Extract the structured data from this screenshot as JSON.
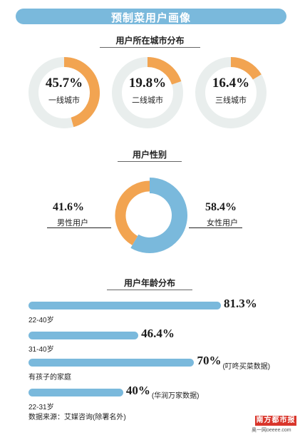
{
  "title": "预制菜用户画像",
  "city_section": {
    "title": "用户所在城市分布"
  },
  "gender_section": {
    "title": "用户性别"
  },
  "age_section": {
    "title": "用户年龄分布"
  },
  "source": "数据来源：艾媒咨询(除署名外)",
  "logo": {
    "name": "南方都市报",
    "sub": "奥一网oeeee.com"
  },
  "colors": {
    "blue": "#7ab9dc",
    "orange": "#f2a451",
    "track": "#e9eeed"
  },
  "chart_data": [
    {
      "type": "pie",
      "title": "用户所在城市分布",
      "slices": [
        {
          "label": "一线城市",
          "value": 45.7,
          "text": "45.7%"
        },
        {
          "label": "二线城市",
          "value": 19.8,
          "text": "19.8%"
        },
        {
          "label": "三线城市",
          "value": 16.4,
          "text": "16.4%"
        }
      ]
    },
    {
      "type": "pie",
      "title": "用户性别",
      "slices": [
        {
          "label": "男性用户",
          "value": 41.6,
          "text": "41.6%"
        },
        {
          "label": "女性用户",
          "value": 58.4,
          "text": "58.4%"
        }
      ]
    },
    {
      "type": "bar",
      "title": "用户年龄分布",
      "bars": [
        {
          "label": "22-40岁",
          "value": 81.3,
          "text": "81.3%",
          "note": ""
        },
        {
          "label": "31-40岁",
          "value": 46.4,
          "text": "46.4%",
          "note": ""
        },
        {
          "label": "有孩子的家庭",
          "value": 70,
          "text": "70%",
          "note": "(叮咚买菜数据)"
        },
        {
          "label": "22-31岁",
          "value": 40,
          "text": "40%",
          "note": "(华润万家数据)"
        }
      ]
    }
  ]
}
